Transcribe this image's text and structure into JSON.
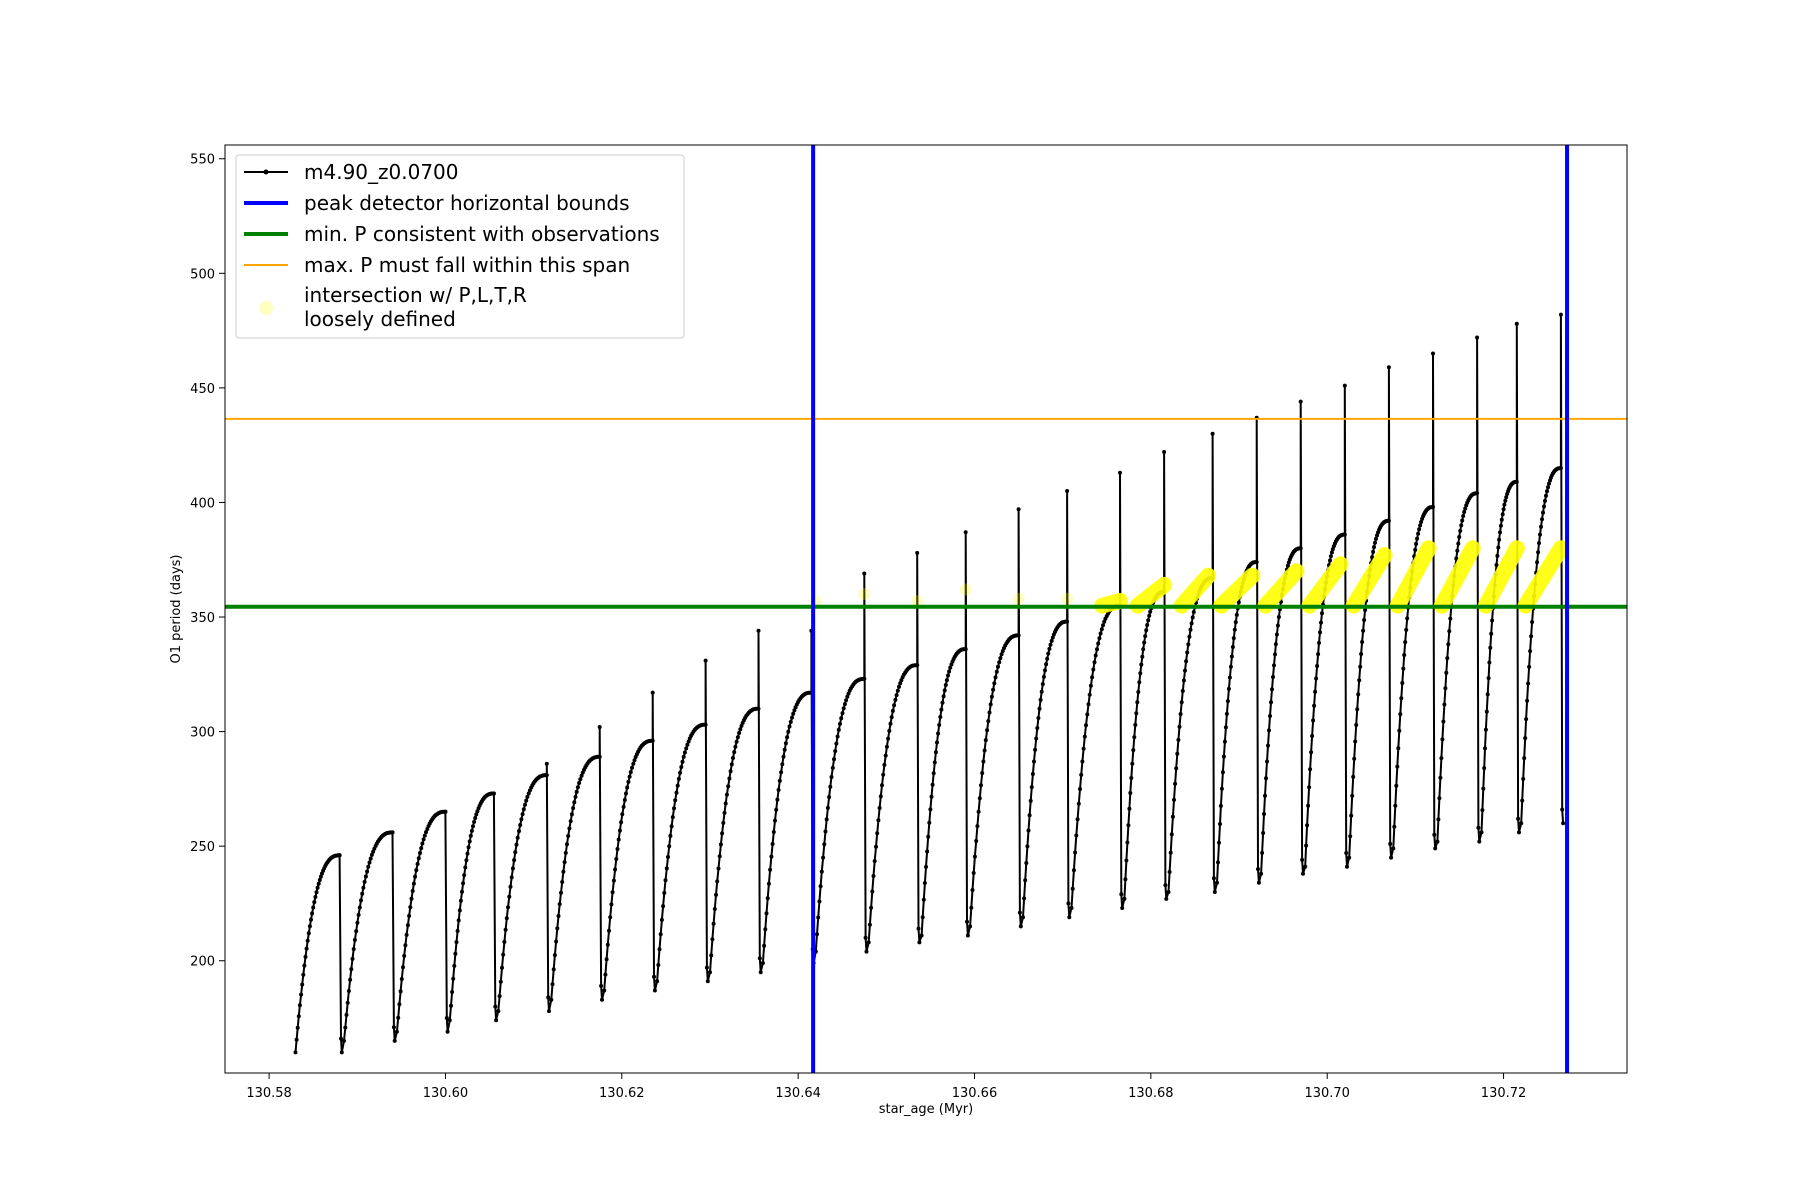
{
  "chart_data": {
    "type": "line",
    "title": "",
    "xlabel": "star_age (Myr)",
    "ylabel": "O1 period (days)",
    "xlim": [
      130.575,
      130.734
    ],
    "ylim": [
      151,
      556
    ],
    "xticks": [
      130.58,
      130.6,
      130.62,
      130.64,
      130.66,
      130.68,
      130.7,
      130.72
    ],
    "xtick_labels": [
      "130.58",
      "130.60",
      "130.62",
      "130.64",
      "130.66",
      "130.68",
      "130.70",
      "130.72"
    ],
    "yticks": [
      200,
      250,
      300,
      350,
      400,
      450,
      500,
      550
    ],
    "ytick_labels": [
      "200",
      "250",
      "300",
      "350",
      "400",
      "450",
      "500",
      "550"
    ],
    "grid": false,
    "legend_position": "top-left",
    "series": [
      {
        "name": "m4.90_z0.0700",
        "color": "#000000",
        "style": "line-with-points",
        "pulses": [
          {
            "start": 130.583,
            "end": 130.588,
            "min": 160,
            "peak": 246,
            "spike": 226
          },
          {
            "start": 130.5885,
            "end": 130.594,
            "min": 165,
            "peak": 256,
            "spike": 256
          },
          {
            "start": 130.5945,
            "end": 130.6,
            "min": 169,
            "peak": 265,
            "spike": 265
          },
          {
            "start": 130.6005,
            "end": 130.6055,
            "min": 174,
            "peak": 273,
            "spike": 273
          },
          {
            "start": 130.606,
            "end": 130.6115,
            "min": 178,
            "peak": 281,
            "spike": 286
          },
          {
            "start": 130.612,
            "end": 130.6175,
            "min": 183,
            "peak": 289,
            "spike": 302
          },
          {
            "start": 130.618,
            "end": 130.6235,
            "min": 187,
            "peak": 296,
            "spike": 317
          },
          {
            "start": 130.624,
            "end": 130.6295,
            "min": 191,
            "peak": 303,
            "spike": 331
          },
          {
            "start": 130.63,
            "end": 130.6355,
            "min": 195,
            "peak": 310,
            "spike": 344
          },
          {
            "start": 130.636,
            "end": 130.6415,
            "min": 199,
            "peak": 317,
            "spike": 344
          },
          {
            "start": 130.642,
            "end": 130.6475,
            "min": 204,
            "peak": 323,
            "spike": 369
          },
          {
            "start": 130.648,
            "end": 130.6535,
            "min": 208,
            "peak": 329,
            "spike": 378
          },
          {
            "start": 130.654,
            "end": 130.659,
            "min": 211,
            "peak": 336,
            "spike": 387
          },
          {
            "start": 130.6595,
            "end": 130.665,
            "min": 215,
            "peak": 342,
            "spike": 397
          },
          {
            "start": 130.6655,
            "end": 130.6705,
            "min": 219,
            "peak": 348,
            "spike": 405
          },
          {
            "start": 130.671,
            "end": 130.6765,
            "min": 223,
            "peak": 355,
            "spike": 413
          },
          {
            "start": 130.677,
            "end": 130.6815,
            "min": 227,
            "peak": 361,
            "spike": 422
          },
          {
            "start": 130.682,
            "end": 130.687,
            "min": 230,
            "peak": 367,
            "spike": 430
          },
          {
            "start": 130.6875,
            "end": 130.692,
            "min": 234,
            "peak": 374,
            "spike": 437
          },
          {
            "start": 130.6925,
            "end": 130.697,
            "min": 238,
            "peak": 380,
            "spike": 444
          },
          {
            "start": 130.6975,
            "end": 130.702,
            "min": 241,
            "peak": 386,
            "spike": 451
          },
          {
            "start": 130.7025,
            "end": 130.707,
            "min": 245,
            "peak": 392,
            "spike": 459
          },
          {
            "start": 130.7075,
            "end": 130.712,
            "min": 249,
            "peak": 398,
            "spike": 465
          },
          {
            "start": 130.7125,
            "end": 130.717,
            "min": 252,
            "peak": 404,
            "spike": 472
          },
          {
            "start": 130.7175,
            "end": 130.7215,
            "min": 256,
            "peak": 409,
            "spike": 478
          },
          {
            "start": 130.722,
            "end": 130.7265,
            "min": 260,
            "peak": 415,
            "spike": 482
          }
        ]
      },
      {
        "name": "peak detector horizontal bounds",
        "color": "#0000ff",
        "style": "vline",
        "x": [
          130.6417,
          130.7272
        ]
      },
      {
        "name": "min. P consistent with observations",
        "color": "#008000",
        "style": "hline",
        "y": 354.5
      },
      {
        "name": "max. P must fall within this span",
        "color": "#ffa500",
        "style": "hline",
        "y": 436.5
      },
      {
        "name": "intersection w/ P,L,T,R\nloosely defined",
        "color": "#ffff00",
        "style": "markers",
        "faint_points": [
          {
            "x": 130.642,
            "y": 357
          },
          {
            "x": 130.6475,
            "y": 360
          },
          {
            "x": 130.6535,
            "y": 357
          },
          {
            "x": 130.659,
            "y": 362
          },
          {
            "x": 130.665,
            "y": 358
          },
          {
            "x": 130.6705,
            "y": 358
          },
          {
            "x": 130.6765,
            "y": 358
          }
        ],
        "segments": [
          {
            "x0": 130.6745,
            "x1": 130.6765,
            "y0": 355,
            "y1": 357
          },
          {
            "x0": 130.6785,
            "x1": 130.6815,
            "y0": 355,
            "y1": 364
          },
          {
            "x0": 130.6835,
            "x1": 130.6865,
            "y0": 355,
            "y1": 368
          },
          {
            "x0": 130.688,
            "x1": 130.6915,
            "y0": 355,
            "y1": 368
          },
          {
            "x0": 130.693,
            "x1": 130.6965,
            "y0": 355,
            "y1": 370
          },
          {
            "x0": 130.698,
            "x1": 130.7015,
            "y0": 355,
            "y1": 373
          },
          {
            "x0": 130.703,
            "x1": 130.7065,
            "y0": 355,
            "y1": 377
          },
          {
            "x0": 130.708,
            "x1": 130.7115,
            "y0": 355,
            "y1": 380
          },
          {
            "x0": 130.713,
            "x1": 130.7165,
            "y0": 355,
            "y1": 380
          },
          {
            "x0": 130.718,
            "x1": 130.7215,
            "y0": 355,
            "y1": 380
          },
          {
            "x0": 130.7225,
            "x1": 130.7265,
            "y0": 355,
            "y1": 380
          }
        ]
      }
    ]
  }
}
